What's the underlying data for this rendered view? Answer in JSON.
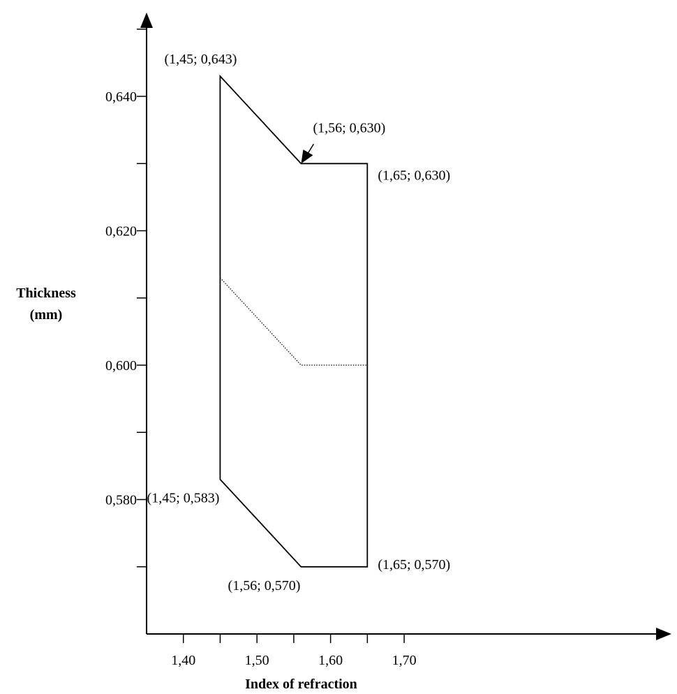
{
  "chart_data": {
    "type": "line",
    "xlabel": "Index of refraction",
    "ylabel_lines": [
      "Thickness",
      "(mm)"
    ],
    "xlim": [
      1.35,
      1.75
    ],
    "ylim": [
      0.56,
      0.655
    ],
    "x_ticks": [
      1.4,
      1.45,
      1.5,
      1.55,
      1.6,
      1.65,
      1.7
    ],
    "x_tick_labels": [
      {
        "value": 1.4,
        "label": "1,40"
      },
      {
        "value": 1.5,
        "label": "1,50"
      },
      {
        "value": 1.6,
        "label": "1,60"
      },
      {
        "value": 1.7,
        "label": "1,70"
      }
    ],
    "y_ticks": [
      0.57,
      0.58,
      0.59,
      0.6,
      0.61,
      0.62,
      0.63,
      0.64,
      0.65
    ],
    "y_tick_labels": [
      {
        "value": 0.58,
        "label": "0,580"
      },
      {
        "value": 0.6,
        "label": "0,600"
      },
      {
        "value": 0.62,
        "label": "0,620"
      },
      {
        "value": 0.64,
        "label": "0,640"
      }
    ],
    "series": [
      {
        "role": "tolerance-boundary",
        "style": "solid",
        "closed": true,
        "points": [
          [
            1.45,
            0.643
          ],
          [
            1.56,
            0.63
          ],
          [
            1.65,
            0.63
          ],
          [
            1.65,
            0.57
          ],
          [
            1.56,
            0.57
          ],
          [
            1.45,
            0.583
          ]
        ]
      },
      {
        "role": "nominal",
        "style": "dotted",
        "closed": false,
        "points": [
          [
            1.45,
            0.613
          ],
          [
            1.56,
            0.6
          ],
          [
            1.65,
            0.6
          ]
        ]
      }
    ],
    "annotations": [
      {
        "text": "(1,45; 0,643)",
        "x": 1.45,
        "y": 0.643,
        "anchor": "above-left"
      },
      {
        "text": "(1,56; 0,630)",
        "x": 1.56,
        "y": 0.63,
        "anchor": "arrow-top-right"
      },
      {
        "text": "(1,65; 0,630)",
        "x": 1.65,
        "y": 0.63,
        "anchor": "below-right"
      },
      {
        "text": "(1,45; 0,583)",
        "x": 1.45,
        "y": 0.583,
        "anchor": "below-left"
      },
      {
        "text": "(1,56; 0,570)",
        "x": 1.56,
        "y": 0.57,
        "anchor": "below-left"
      },
      {
        "text": "(1,65; 0,570)",
        "x": 1.65,
        "y": 0.57,
        "anchor": "right"
      }
    ],
    "grid": false,
    "legend": "none"
  }
}
